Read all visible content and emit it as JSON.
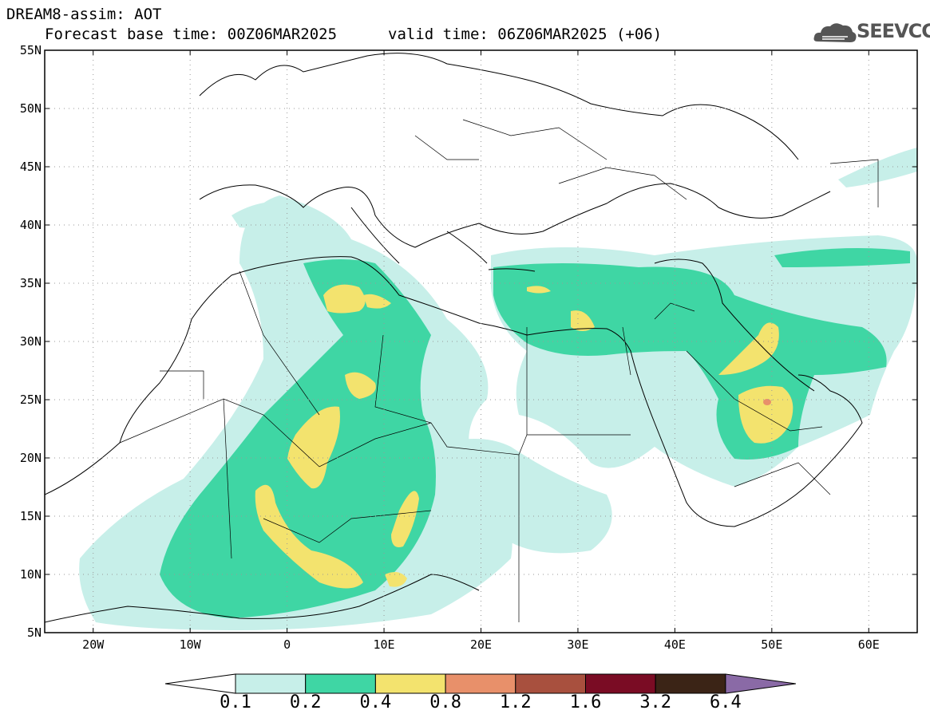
{
  "header": {
    "title": "DREAM8-assim: AOT",
    "base_time": "Forecast base time: 00Z06MAR2025",
    "valid_time": "valid time: 06Z06MAR2025 (+06)"
  },
  "logo": {
    "text": "SEEVCCC",
    "icon": "cloud-icon"
  },
  "axes": {
    "lat_labels": [
      "55N",
      "50N",
      "45N",
      "40N",
      "35N",
      "30N",
      "25N",
      "20N",
      "15N",
      "10N",
      "5N"
    ],
    "lon_labels": [
      "20W",
      "10W",
      "0",
      "10E",
      "20E",
      "30E",
      "40E",
      "50E",
      "60E"
    ]
  },
  "colorbar": {
    "labels": [
      "0.1",
      "0.2",
      "0.4",
      "0.8",
      "1.2",
      "1.6",
      "3.2",
      "6.4"
    ],
    "colors": [
      "#c7efe9",
      "#3fd6a4",
      "#f3e36e",
      "#e8906a",
      "#a8503e",
      "#7a0c24",
      "#3b2416",
      "#8a6aa6"
    ]
  }
}
